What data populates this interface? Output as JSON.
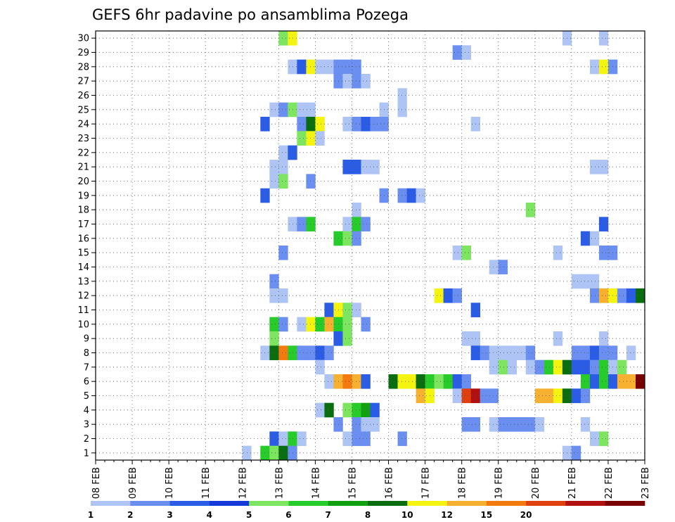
{
  "chart_data": {
    "type": "heatmap",
    "title": "GEFS 6hr padavine po ansamblima Pozega",
    "xlabel": "",
    "ylabel": "",
    "x_tick_labels": [
      "08 FEB",
      "09 FEB",
      "10 FEB",
      "11 FEB",
      "12 FEB",
      "13 FEB",
      "14 FEB",
      "15 FEB",
      "16 FEB",
      "17 FEB",
      "18 FEB",
      "19 FEB",
      "20 FEB",
      "21 FEB",
      "22 FEB",
      "23 FEB"
    ],
    "x_range_days": [
      0,
      15
    ],
    "y_tick_labels": [
      "1",
      "2",
      "3",
      "4",
      "5",
      "6",
      "7",
      "8",
      "9",
      "10",
      "11",
      "12",
      "13",
      "14",
      "15",
      "16",
      "17",
      "18",
      "19",
      "20",
      "21",
      "22",
      "23",
      "24",
      "25",
      "26",
      "27",
      "28",
      "29",
      "30"
    ],
    "y_range": [
      0.5,
      30.5
    ],
    "grid": true,
    "colorbar": {
      "labels": [
        "1",
        "2",
        "3",
        "4",
        "5",
        "6",
        "7",
        "8",
        "10",
        "12",
        "15",
        "20"
      ],
      "colors": [
        "#aec4f4",
        "#6b8ff0",
        "#2b5ce6",
        "#1538d8",
        "#7de560",
        "#27cc2a",
        "#10a010",
        "#0a6e10",
        "#f4f410",
        "#f7b030",
        "#f47a10",
        "#e04010",
        "#b01010",
        "#780000"
      ]
    },
    "cells": [
      [
        13,
        30,
        5
      ],
      [
        13.25,
        30,
        9
      ],
      [
        20.75,
        30,
        1
      ],
      [
        21.75,
        30,
        1
      ],
      [
        17.75,
        29,
        2
      ],
      [
        18,
        29,
        1
      ],
      [
        13.25,
        28,
        1
      ],
      [
        13.5,
        28,
        3
      ],
      [
        13.75,
        28,
        9
      ],
      [
        14,
        28,
        1
      ],
      [
        14.25,
        28,
        1
      ],
      [
        14.5,
        28,
        2
      ],
      [
        14.75,
        28,
        2
      ],
      [
        15,
        28,
        2
      ],
      [
        21.5,
        28,
        1
      ],
      [
        21.75,
        28,
        9
      ],
      [
        22,
        28,
        2
      ],
      [
        14.5,
        27,
        2
      ],
      [
        14.75,
        27,
        1
      ],
      [
        15,
        27,
        2
      ],
      [
        15.25,
        27,
        1
      ],
      [
        16.25,
        26,
        1
      ],
      [
        12.75,
        25,
        1
      ],
      [
        13,
        25,
        2
      ],
      [
        13.25,
        25,
        5
      ],
      [
        13.5,
        25,
        1
      ],
      [
        13.75,
        25,
        1
      ],
      [
        15.75,
        25,
        1
      ],
      [
        16.25,
        25,
        1
      ],
      [
        12.5,
        24,
        3
      ],
      [
        13.5,
        24,
        2
      ],
      [
        13.75,
        24,
        8
      ],
      [
        14,
        24,
        9
      ],
      [
        14.75,
        24,
        1
      ],
      [
        15,
        24,
        2
      ],
      [
        15.25,
        24,
        3
      ],
      [
        15.5,
        24,
        2
      ],
      [
        15.75,
        24,
        2
      ],
      [
        18.25,
        24,
        1
      ],
      [
        13.5,
        23,
        5
      ],
      [
        13.75,
        23,
        9
      ],
      [
        14,
        23,
        1
      ],
      [
        13,
        22,
        1
      ],
      [
        13.25,
        22,
        3
      ],
      [
        12.75,
        21,
        1
      ],
      [
        13,
        21,
        1
      ],
      [
        14.75,
        21,
        3
      ],
      [
        15,
        21,
        3
      ],
      [
        15.25,
        21,
        1
      ],
      [
        15.5,
        21,
        1
      ],
      [
        21.5,
        21,
        1
      ],
      [
        21.75,
        21,
        1
      ],
      [
        12.75,
        20,
        1
      ],
      [
        13,
        20,
        5
      ],
      [
        13.75,
        20,
        2
      ],
      [
        12.5,
        19,
        3
      ],
      [
        15.75,
        19,
        2
      ],
      [
        16.25,
        19,
        2
      ],
      [
        16.5,
        19,
        3
      ],
      [
        16.75,
        19,
        1
      ],
      [
        15,
        18,
        1
      ],
      [
        19.75,
        18,
        5
      ],
      [
        13.25,
        17,
        1
      ],
      [
        13.5,
        17,
        2
      ],
      [
        13.75,
        17,
        6
      ],
      [
        14.75,
        17,
        1
      ],
      [
        15,
        17,
        6
      ],
      [
        15.25,
        17,
        2
      ],
      [
        21.75,
        17,
        3
      ],
      [
        14.5,
        16,
        6
      ],
      [
        14.75,
        16,
        5
      ],
      [
        15,
        16,
        2
      ],
      [
        21.25,
        16,
        3
      ],
      [
        21.5,
        16,
        1
      ],
      [
        13,
        15,
        2
      ],
      [
        17.75,
        15,
        1
      ],
      [
        18,
        15,
        5
      ],
      [
        20.5,
        15,
        1
      ],
      [
        21.75,
        15,
        2
      ],
      [
        22,
        15,
        2
      ],
      [
        18.75,
        14,
        1
      ],
      [
        19,
        14,
        2
      ],
      [
        12.75,
        13,
        2
      ],
      [
        21,
        13,
        1
      ],
      [
        21.25,
        13,
        1
      ],
      [
        21.5,
        13,
        1
      ],
      [
        12.75,
        12,
        1
      ],
      [
        13,
        12,
        1
      ],
      [
        17.25,
        12,
        9
      ],
      [
        17.5,
        12,
        3
      ],
      [
        17.75,
        12,
        2
      ],
      [
        21.5,
        12,
        2
      ],
      [
        21.75,
        12,
        10
      ],
      [
        22,
        12,
        9
      ],
      [
        22.25,
        12,
        2
      ],
      [
        22.5,
        12,
        3
      ],
      [
        22.75,
        12,
        8
      ],
      [
        23,
        12,
        6
      ],
      [
        14.25,
        11,
        3
      ],
      [
        14.5,
        11,
        9
      ],
      [
        14.75,
        11,
        5
      ],
      [
        15,
        11,
        1
      ],
      [
        18.25,
        11,
        3
      ],
      [
        12.75,
        10,
        6
      ],
      [
        13,
        10,
        2
      ],
      [
        13.5,
        10,
        1
      ],
      [
        13.75,
        10,
        9
      ],
      [
        14,
        10,
        6
      ],
      [
        14.25,
        10,
        10
      ],
      [
        14.5,
        10,
        6
      ],
      [
        14.75,
        10,
        5
      ],
      [
        15.25,
        10,
        2
      ],
      [
        12.75,
        9,
        5
      ],
      [
        14.5,
        9,
        3
      ],
      [
        14.75,
        9,
        5
      ],
      [
        18,
        9,
        1
      ],
      [
        18.25,
        9,
        1
      ],
      [
        20.5,
        9,
        1
      ],
      [
        21.75,
        9,
        1
      ],
      [
        12.5,
        8,
        1
      ],
      [
        12.75,
        8,
        8
      ],
      [
        13,
        8,
        11
      ],
      [
        13.25,
        8,
        6
      ],
      [
        13.5,
        8,
        2
      ],
      [
        13.75,
        8,
        2
      ],
      [
        14,
        8,
        3
      ],
      [
        14.25,
        8,
        2
      ],
      [
        18.25,
        8,
        3
      ],
      [
        18.5,
        8,
        2
      ],
      [
        18.75,
        8,
        1
      ],
      [
        19,
        8,
        1
      ],
      [
        19.25,
        8,
        1
      ],
      [
        19.5,
        8,
        1
      ],
      [
        19.75,
        8,
        2
      ],
      [
        21,
        8,
        2
      ],
      [
        21.25,
        8,
        2
      ],
      [
        21.5,
        8,
        3
      ],
      [
        21.75,
        8,
        2
      ],
      [
        22,
        8,
        2
      ],
      [
        22.5,
        8,
        1
      ],
      [
        14,
        7,
        1
      ],
      [
        18.75,
        7,
        1
      ],
      [
        19,
        7,
        5
      ],
      [
        19.25,
        7,
        1
      ],
      [
        19.75,
        7,
        1
      ],
      [
        20,
        7,
        2
      ],
      [
        20.25,
        7,
        6
      ],
      [
        20.5,
        7,
        9
      ],
      [
        20.75,
        7,
        8
      ],
      [
        21,
        7,
        3
      ],
      [
        21.25,
        7,
        3
      ],
      [
        21.5,
        7,
        2
      ],
      [
        21.75,
        7,
        6
      ],
      [
        22,
        7,
        1
      ],
      [
        22.25,
        7,
        5
      ],
      [
        14.25,
        6,
        1
      ],
      [
        14.5,
        6,
        10
      ],
      [
        14.75,
        6,
        11
      ],
      [
        15,
        6,
        10
      ],
      [
        15.25,
        6,
        3
      ],
      [
        16,
        6,
        8
      ],
      [
        16.25,
        6,
        9
      ],
      [
        16.5,
        6,
        9
      ],
      [
        16.75,
        6,
        8
      ],
      [
        17,
        6,
        6
      ],
      [
        17.25,
        6,
        5
      ],
      [
        17.5,
        6,
        6
      ],
      [
        17.75,
        6,
        3
      ],
      [
        18,
        6,
        2
      ],
      [
        21.25,
        6,
        6
      ],
      [
        21.5,
        6,
        3
      ],
      [
        21.75,
        6,
        6
      ],
      [
        22,
        6,
        3
      ],
      [
        22.25,
        6,
        10
      ],
      [
        22.5,
        6,
        10
      ],
      [
        22.75,
        6,
        14
      ],
      [
        16.75,
        5,
        10
      ],
      [
        17,
        5,
        9
      ],
      [
        17.75,
        5,
        1
      ],
      [
        18,
        5,
        12
      ],
      [
        18.25,
        5,
        13
      ],
      [
        18.5,
        5,
        2
      ],
      [
        18.75,
        5,
        2
      ],
      [
        20,
        5,
        10
      ],
      [
        20.25,
        5,
        10
      ],
      [
        20.5,
        5,
        9
      ],
      [
        20.75,
        5,
        8
      ],
      [
        21,
        5,
        3
      ],
      [
        21.25,
        5,
        2
      ],
      [
        14,
        4,
        1
      ],
      [
        14.25,
        4,
        8
      ],
      [
        14.75,
        4,
        5
      ],
      [
        15,
        4,
        6
      ],
      [
        15.25,
        4,
        7
      ],
      [
        15.5,
        4,
        3
      ],
      [
        23,
        4,
        2
      ],
      [
        14.5,
        3,
        2
      ],
      [
        15,
        3,
        2
      ],
      [
        15.25,
        3,
        1
      ],
      [
        15.5,
        3,
        1
      ],
      [
        18,
        3,
        2
      ],
      [
        18.25,
        3,
        2
      ],
      [
        18.75,
        3,
        1
      ],
      [
        19,
        3,
        2
      ],
      [
        19.25,
        3,
        2
      ],
      [
        19.5,
        3,
        2
      ],
      [
        19.75,
        3,
        2
      ],
      [
        20,
        3,
        1
      ],
      [
        21.25,
        3,
        1
      ],
      [
        12.75,
        2,
        3
      ],
      [
        13,
        2,
        1
      ],
      [
        13.25,
        2,
        6
      ],
      [
        13.5,
        2,
        1
      ],
      [
        14.75,
        2,
        1
      ],
      [
        15,
        2,
        2
      ],
      [
        15.25,
        2,
        2
      ],
      [
        16.25,
        2,
        2
      ],
      [
        21.5,
        2,
        1
      ],
      [
        21.75,
        2,
        5
      ],
      [
        12,
        1,
        1
      ],
      [
        12.5,
        1,
        6
      ],
      [
        12.75,
        1,
        5
      ],
      [
        13,
        1,
        8
      ],
      [
        13.25,
        1,
        2
      ],
      [
        20.75,
        1,
        1
      ],
      [
        21,
        1,
        2
      ]
    ]
  }
}
